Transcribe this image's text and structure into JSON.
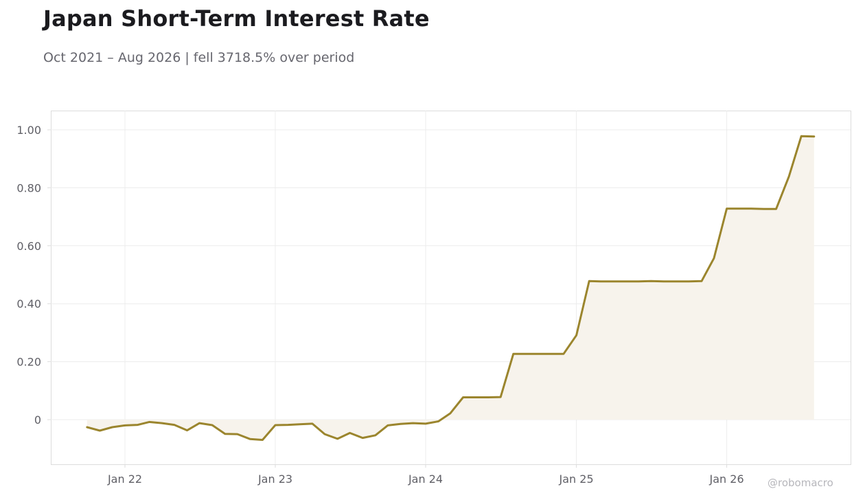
{
  "title": "Japan Short-Term Interest Rate",
  "subtitle": "Oct 2021 – Aug 2026 | fell 3718.5% over period",
  "watermark": "@robomacro",
  "colors": {
    "line": "#9b852d",
    "fill": "#f7f3ec",
    "grid": "#ececec",
    "frame": "#dcdcdc",
    "tick_text": "#5f5f66"
  },
  "chart_data": {
    "type": "area",
    "title": "Japan Short-Term Interest Rate",
    "xlabel": "",
    "ylabel": "",
    "x_start": "2021-10",
    "x_end": "2026-08",
    "x_tick_labels": [
      "Jan 22",
      "Jan 23",
      "Jan 24",
      "Jan 25",
      "Jan 26"
    ],
    "x_tick_dates": [
      "2022-01",
      "2023-01",
      "2024-01",
      "2025-01",
      "2026-01"
    ],
    "y_tick_labels": [
      "0",
      "0.20",
      "0.40",
      "0.60",
      "0.80",
      "1.00"
    ],
    "y_ticks": [
      0,
      0.2,
      0.4,
      0.6,
      0.8,
      1.0
    ],
    "ylim": [
      -0.155,
      1.065
    ],
    "grid": true,
    "series": [
      {
        "x": [
          "2021-10",
          "2021-11",
          "2021-12",
          "2022-01",
          "2022-02",
          "2022-03",
          "2022-04",
          "2022-05",
          "2022-06",
          "2022-07",
          "2022-08",
          "2022-09",
          "2022-10",
          "2022-11",
          "2022-12",
          "2023-01",
          "2023-02",
          "2023-03",
          "2023-04",
          "2023-05",
          "2023-06",
          "2023-07",
          "2023-08",
          "2023-09",
          "2023-10",
          "2023-11",
          "2023-12",
          "2024-01",
          "2024-02",
          "2024-03",
          "2024-04",
          "2024-05",
          "2024-06",
          "2024-07",
          "2024-08",
          "2024-09",
          "2024-10",
          "2024-11",
          "2024-12",
          "2025-01",
          "2025-02",
          "2025-03",
          "2025-04",
          "2025-05",
          "2025-06",
          "2025-07",
          "2025-08",
          "2025-09",
          "2025-10",
          "2025-11",
          "2025-12",
          "2026-01",
          "2026-02",
          "2026-03",
          "2026-04",
          "2026-05",
          "2026-06",
          "2026-07",
          "2026-08"
        ],
        "values": [
          -0.026,
          -0.038,
          -0.026,
          -0.02,
          -0.018,
          -0.008,
          -0.012,
          -0.018,
          -0.037,
          -0.012,
          -0.019,
          -0.049,
          -0.05,
          -0.067,
          -0.07,
          -0.019,
          -0.018,
          -0.016,
          -0.014,
          -0.05,
          -0.066,
          -0.046,
          -0.063,
          -0.054,
          -0.02,
          -0.015,
          -0.012,
          -0.014,
          -0.006,
          0.022,
          0.077,
          0.077,
          0.077,
          0.078,
          0.227,
          0.227,
          0.227,
          0.227,
          0.227,
          0.291,
          0.478,
          0.477,
          0.477,
          0.477,
          0.477,
          0.478,
          0.477,
          0.477,
          0.477,
          0.478,
          0.557,
          0.728,
          0.728,
          0.728,
          0.727,
          0.727,
          0.839,
          0.978,
          0.977
        ]
      }
    ]
  }
}
